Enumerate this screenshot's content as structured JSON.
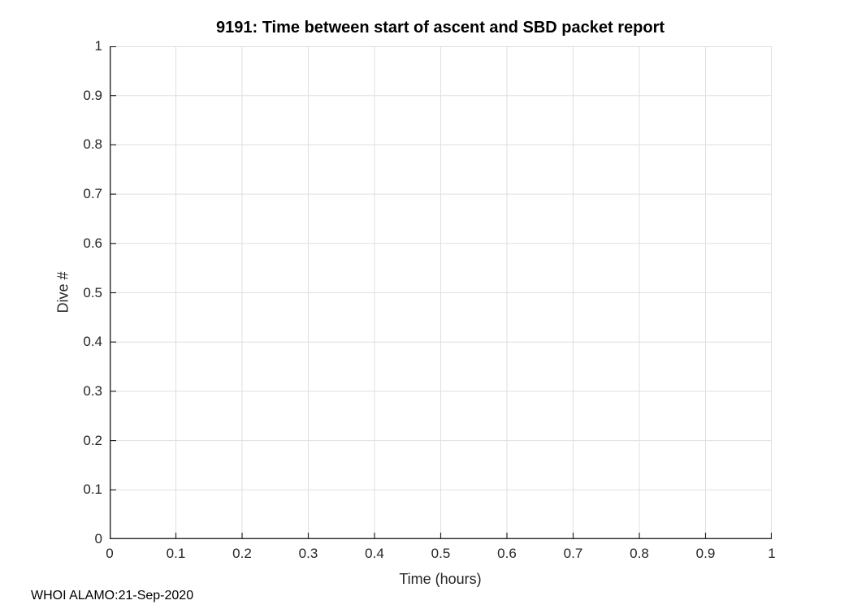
{
  "chart_data": {
    "type": "scatter",
    "title": "9191: Time between start of ascent and SBD packet report",
    "xlabel": "Time (hours)",
    "ylabel": "Dive #",
    "xlim": [
      0,
      1
    ],
    "ylim": [
      0,
      1
    ],
    "xticks": [
      0,
      0.1,
      0.2,
      0.3,
      0.4,
      0.5,
      0.6,
      0.7,
      0.8,
      0.9,
      1
    ],
    "yticks": [
      0,
      0.1,
      0.2,
      0.3,
      0.4,
      0.5,
      0.6,
      0.7,
      0.8,
      0.9,
      1
    ],
    "xtick_labels": [
      "0",
      "0.1",
      "0.2",
      "0.3",
      "0.4",
      "0.5",
      "0.6",
      "0.7",
      "0.8",
      "0.9",
      "1"
    ],
    "ytick_labels": [
      "0",
      "0.1",
      "0.2",
      "0.3",
      "0.4",
      "0.5",
      "0.6",
      "0.7",
      "0.8",
      "0.9",
      "1"
    ],
    "grid": true,
    "legend": null,
    "series": []
  },
  "annotations": {
    "footer": "WHOI ALAMO:21-Sep-2020"
  },
  "colors": {
    "background": "#ffffff",
    "axis": "#262626",
    "grid": "#dfdfdf",
    "tick_label": "#262626",
    "title": "#000000",
    "footer": "#000000"
  }
}
